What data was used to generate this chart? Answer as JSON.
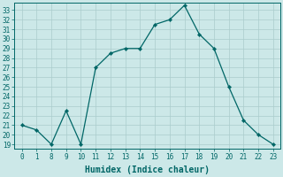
{
  "xlabel": "Humidex (Indice chaleur)",
  "line_color": "#006666",
  "bg_color": "#cce8e8",
  "grid_color": "#aacccc",
  "axis_color": "#006666",
  "tick_color": "#006666",
  "hours": [
    0,
    1,
    8,
    9,
    10,
    11,
    12,
    13,
    14,
    15,
    16,
    17,
    18,
    19,
    20,
    21,
    22,
    23
  ],
  "humidex": [
    21,
    20.5,
    19,
    22.5,
    19,
    27,
    28.5,
    29,
    29,
    31.5,
    32,
    33.5,
    30.5,
    29,
    25,
    21.5,
    20,
    19
  ],
  "yticks": [
    19,
    20,
    21,
    22,
    23,
    24,
    25,
    26,
    27,
    28,
    29,
    30,
    31,
    32,
    33
  ],
  "ylim_low": 18.5,
  "ylim_high": 33.8,
  "tick_fontsize": 5.5,
  "label_fontsize": 7
}
